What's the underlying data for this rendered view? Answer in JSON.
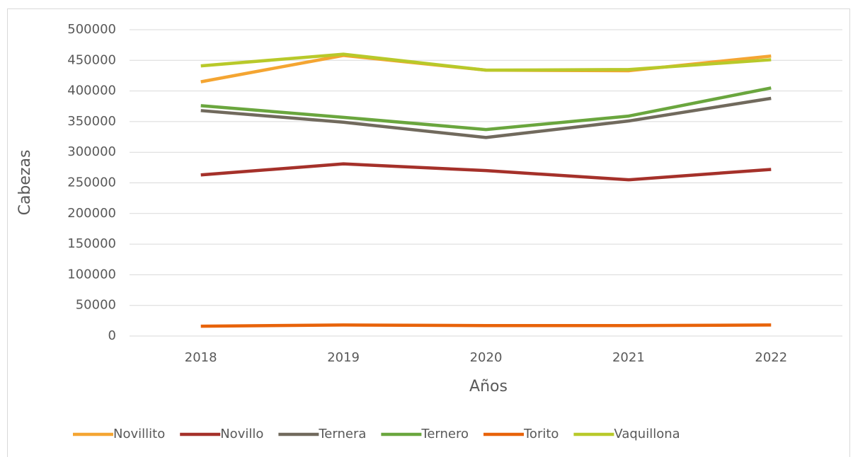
{
  "chart_data": {
    "type": "line",
    "x_label": "Años",
    "y_label": "Cabezas",
    "categories": [
      "2018",
      "2019",
      "2020",
      "2021",
      "2022"
    ],
    "series": [
      {
        "name": "Novillito",
        "color": "#f4a532",
        "values": [
          415000,
          458000,
          434000,
          433000,
          457000
        ]
      },
      {
        "name": "Novillo",
        "color": "#a5312a",
        "values": [
          263000,
          281000,
          270000,
          255000,
          272000
        ]
      },
      {
        "name": "Ternera",
        "color": "#716a5d",
        "values": [
          368000,
          349000,
          324000,
          351000,
          388000
        ]
      },
      {
        "name": "Ternero",
        "color": "#6aa63e",
        "values": [
          376000,
          357000,
          337000,
          359000,
          405000
        ]
      },
      {
        "name": "Torito",
        "color": "#e8630a",
        "values": [
          16000,
          18000,
          17000,
          17000,
          18000
        ]
      },
      {
        "name": "Vaquillona",
        "color": "#b8c92a",
        "values": [
          441000,
          460000,
          434000,
          435000,
          451000
        ]
      }
    ],
    "ylim": [
      0,
      500000
    ],
    "yticks": [
      0,
      50000,
      100000,
      150000,
      200000,
      250000,
      300000,
      350000,
      400000,
      450000,
      500000
    ],
    "grid": true,
    "legend": "bottom"
  }
}
